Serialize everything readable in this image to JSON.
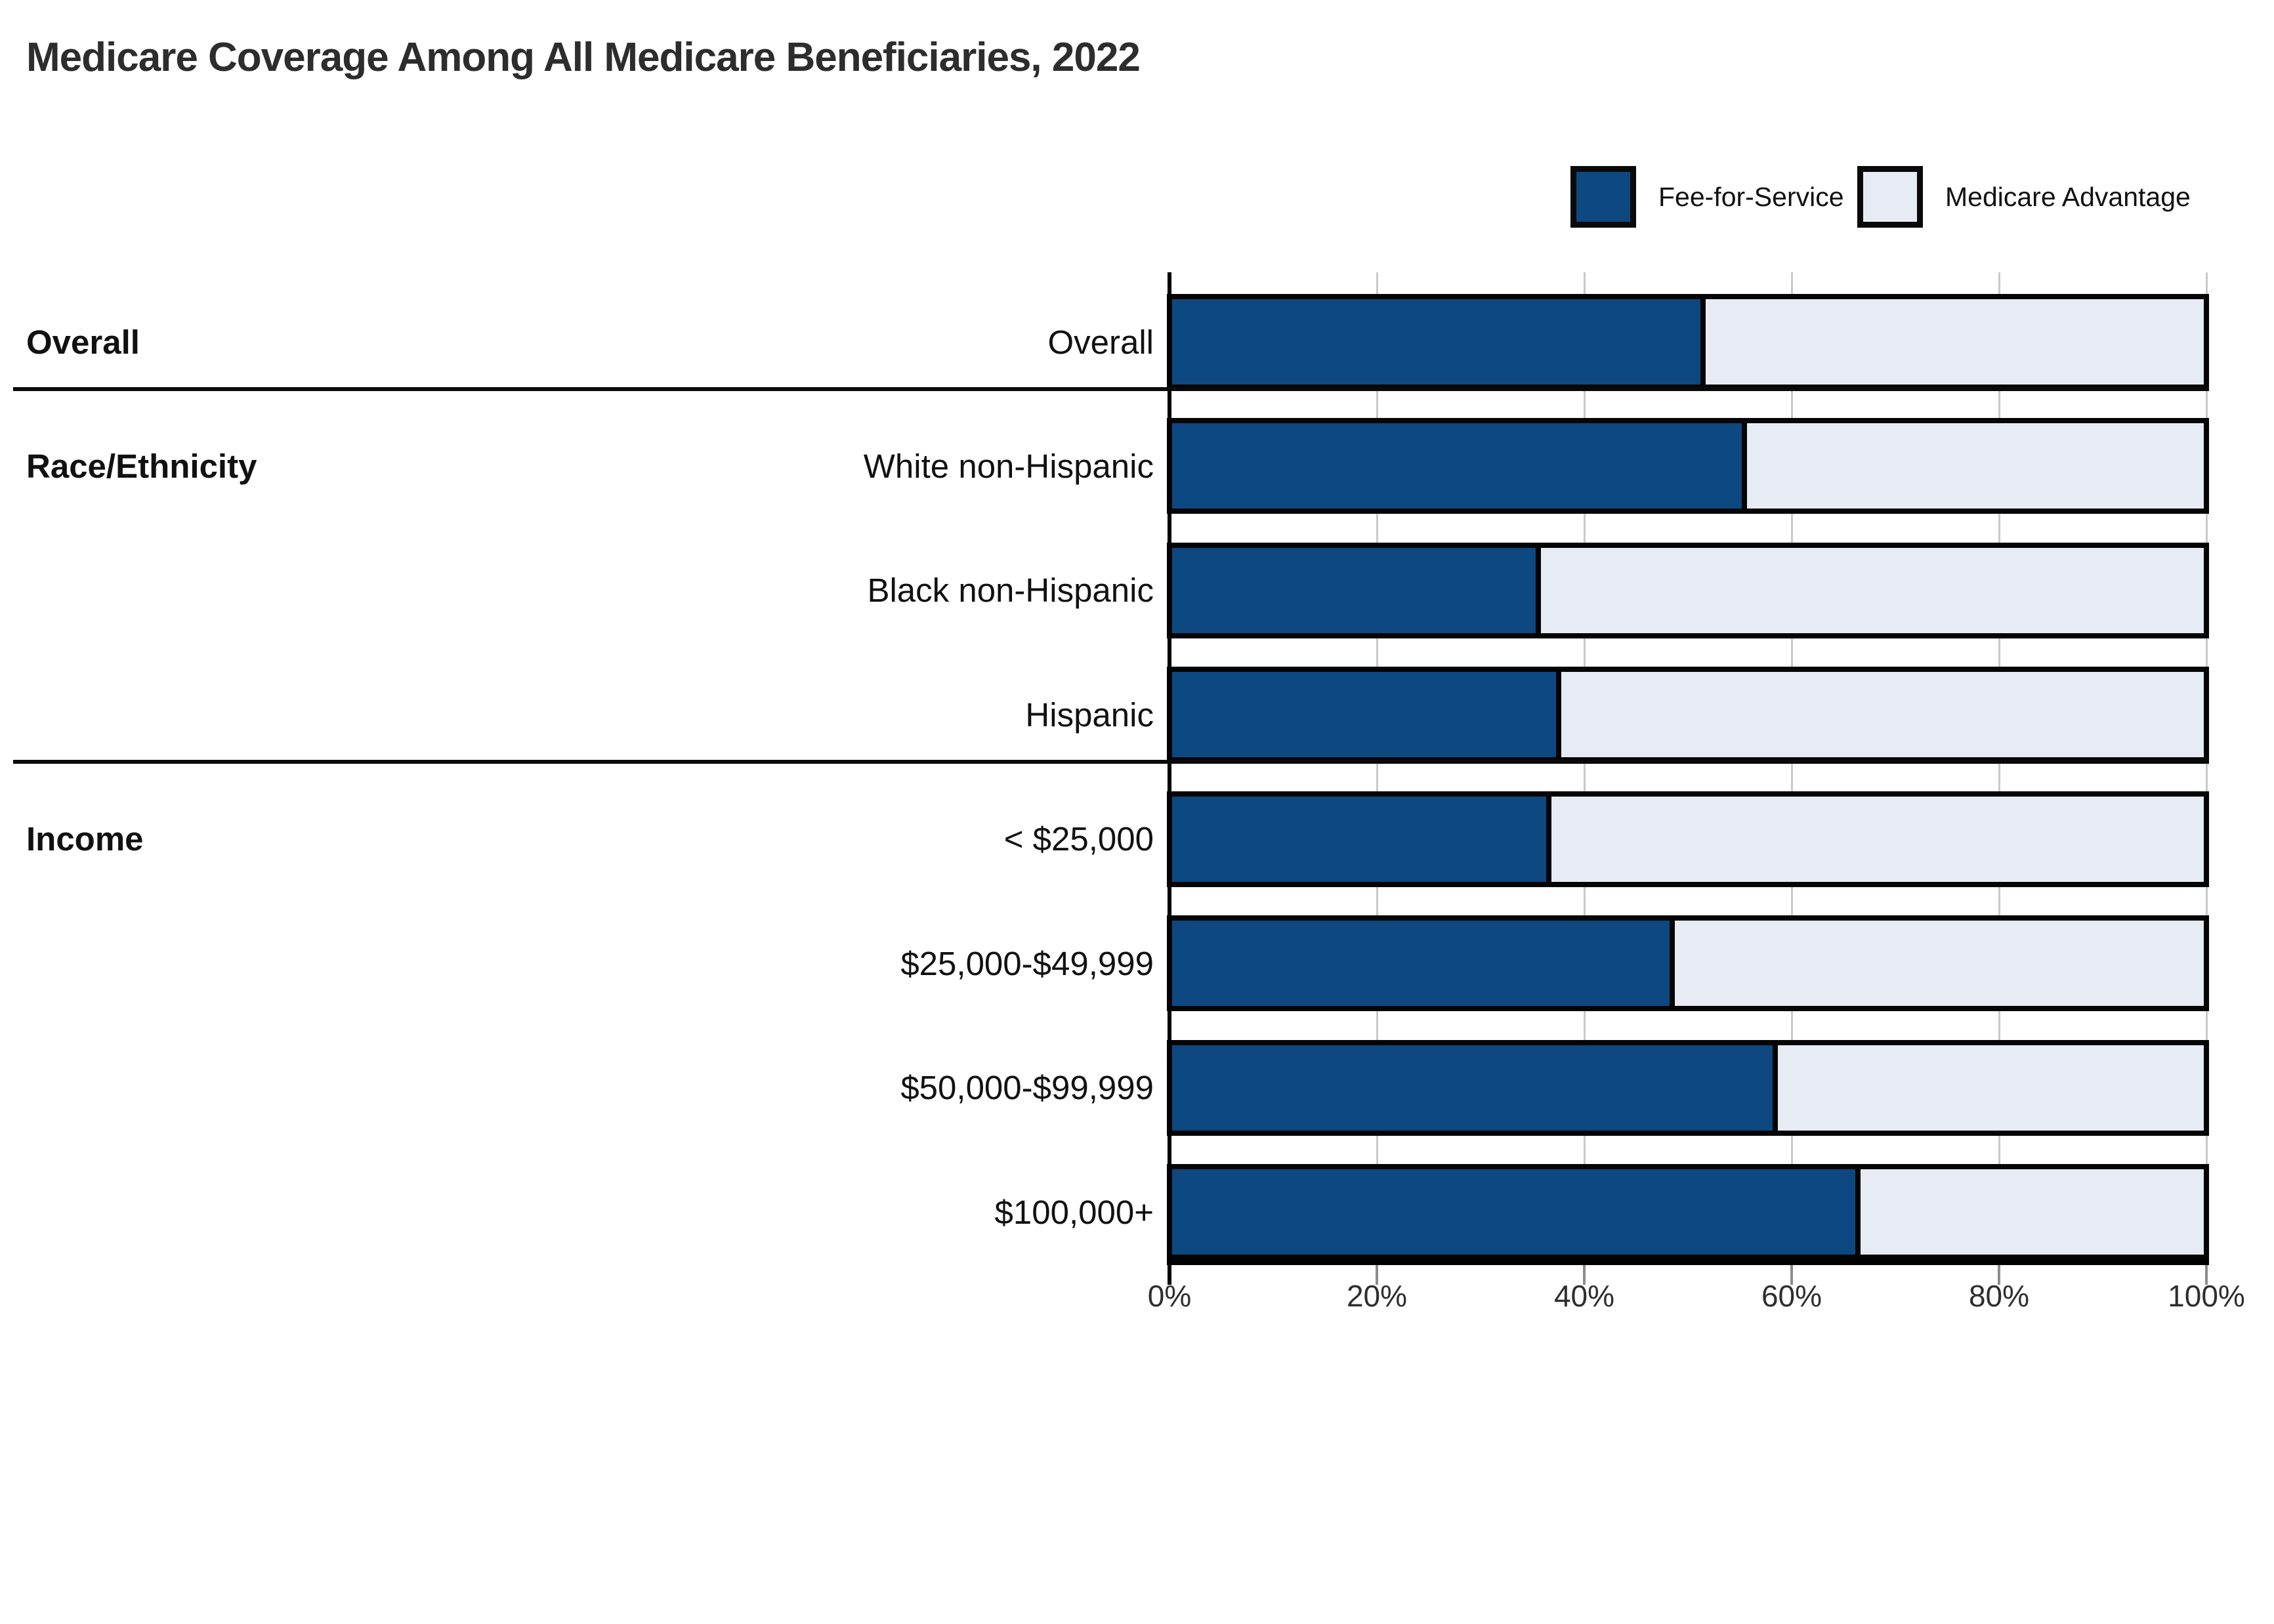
{
  "title": "Medicare Coverage Among All Medicare Beneficiaries, 2022",
  "legend": [
    {
      "label": "Fee-for-Service",
      "color": "#0d4880"
    },
    {
      "label": "Medicare Advantage",
      "color": "#e7ebf4"
    }
  ],
  "colors": {
    "fee_for_service": "#0d4880",
    "medicare_advantage": "#e7ebf4",
    "outline": "#050505",
    "gridline": "#c9c9c9",
    "title_text": "#2d2d2d"
  },
  "chart_data": {
    "type": "bar",
    "stacked": true,
    "orientation": "horizontal",
    "title": "Medicare Coverage Among All Medicare Beneficiaries, 2022",
    "categories": [
      "Overall",
      "White non-Hispanic",
      "Black non-Hispanic",
      "Hispanic",
      "< $25,000",
      "$25,000-$49,999",
      "$50,000-$99,999",
      "$100,000+"
    ],
    "groups": [
      {
        "label": "Overall",
        "start_row": 0
      },
      {
        "label": "Race/Ethnicity",
        "start_row": 1
      },
      {
        "label": "Income",
        "start_row": 4
      }
    ],
    "series": [
      {
        "name": "Fee-for-Service",
        "color": "#0d4880",
        "values": [
          52,
          56,
          36,
          38,
          37,
          49,
          59,
          67
        ]
      },
      {
        "name": "Medicare Advantage",
        "color": "#e7ebf4",
        "values": [
          48,
          44,
          64,
          62,
          63,
          51,
          41,
          33
        ]
      }
    ],
    "x_axis": {
      "min": 0,
      "max": 100,
      "ticks": [
        "0%",
        "20%",
        "40%",
        "60%",
        "80%",
        "100%"
      ],
      "tick_values": [
        0,
        20,
        40,
        60,
        80,
        100
      ]
    },
    "grid": true,
    "legend_position": "top-right"
  }
}
